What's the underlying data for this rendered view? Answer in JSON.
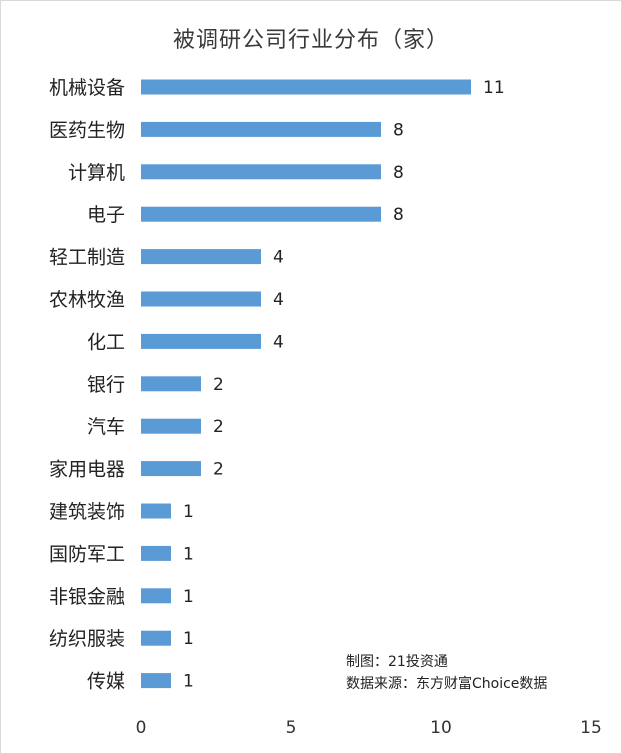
{
  "chart_data": {
    "type": "bar",
    "orientation": "horizontal",
    "title": "被调研公司行业分布（家）",
    "categories": [
      "机械设备",
      "医药生物",
      "计算机",
      "电子",
      "轻工制造",
      "农林牧渔",
      "化工",
      "银行",
      "汽车",
      "家用电器",
      "建筑装饰",
      "国防军工",
      "非银金融",
      "纺织服装",
      "传媒"
    ],
    "values": [
      11,
      8,
      8,
      8,
      4,
      4,
      4,
      2,
      2,
      2,
      1,
      1,
      1,
      1,
      1
    ],
    "xlim": [
      0,
      15
    ],
    "xticks": [
      "0",
      "5",
      "10",
      "15"
    ],
    "bar_color": "#5b9bd5",
    "data_labels": true,
    "grid": false,
    "legend": "none"
  },
  "notes": {
    "maker": "制图：21投资通",
    "source": "数据来源：东方财富Choice数据"
  }
}
